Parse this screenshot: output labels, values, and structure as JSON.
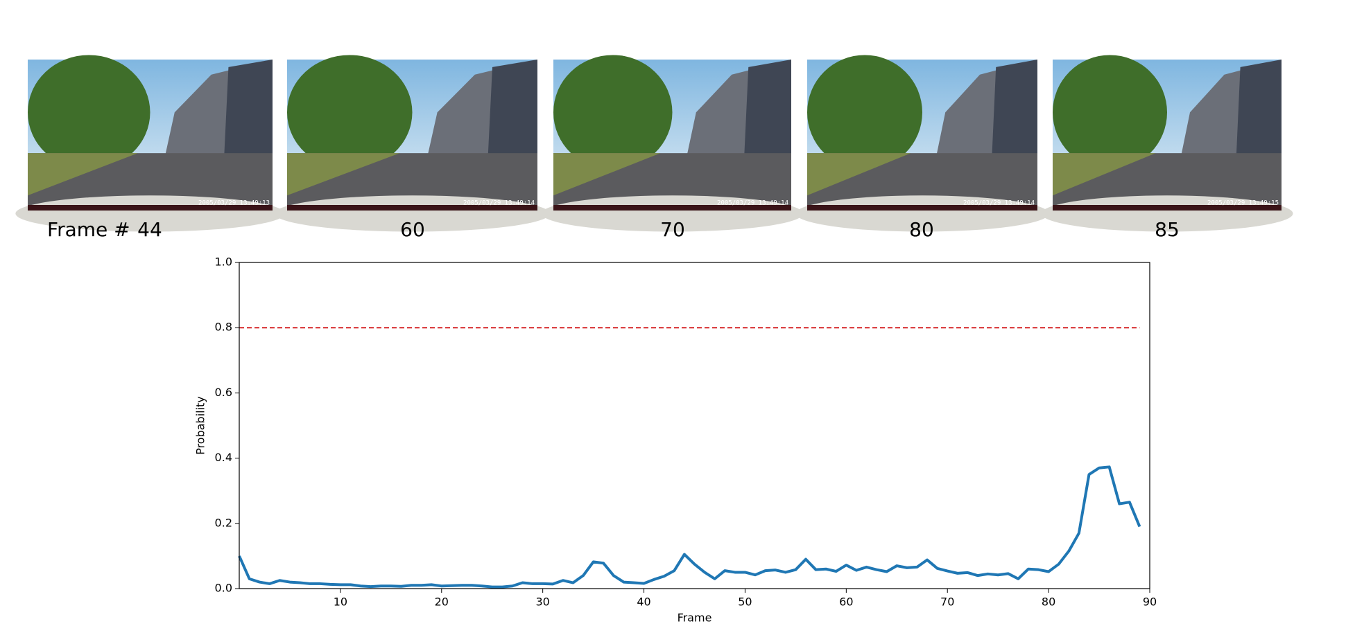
{
  "frames": {
    "prefix": "Frame #",
    "items": [
      {
        "label": "44",
        "timestamp": "2005/03/29 13:49:13"
      },
      {
        "label": "60",
        "timestamp": "2005/03/29 13:49:14"
      },
      {
        "label": "70",
        "timestamp": "2005/03/29 13:49:14"
      },
      {
        "label": "80",
        "timestamp": "2005/03/29 13:49:14"
      },
      {
        "label": "85",
        "timestamp": "2005/03/29 13:49:15"
      }
    ]
  },
  "chart_data": {
    "type": "line",
    "x_label": "Frame",
    "y_label": "Probability",
    "x": [
      0,
      1,
      2,
      3,
      4,
      5,
      6,
      7,
      8,
      9,
      10,
      11,
      12,
      13,
      14,
      15,
      16,
      17,
      18,
      19,
      20,
      21,
      22,
      23,
      24,
      25,
      26,
      27,
      28,
      29,
      30,
      31,
      32,
      33,
      34,
      35,
      36,
      37,
      38,
      39,
      40,
      41,
      42,
      43,
      44,
      45,
      46,
      47,
      48,
      49,
      50,
      51,
      52,
      53,
      54,
      55,
      56,
      57,
      58,
      59,
      60,
      61,
      62,
      63,
      64,
      65,
      66,
      67,
      68,
      69,
      70,
      71,
      72,
      73,
      74,
      75,
      76,
      77,
      78,
      79,
      80,
      81,
      82,
      83,
      84,
      85,
      86,
      87,
      88,
      89
    ],
    "series": [
      {
        "color": "#1f77b4",
        "values": [
          0.1,
          0.03,
          0.02,
          0.015,
          0.025,
          0.02,
          0.018,
          0.015,
          0.015,
          0.013,
          0.012,
          0.012,
          0.008,
          0.006,
          0.008,
          0.008,
          0.007,
          0.01,
          0.01,
          0.012,
          0.008,
          0.009,
          0.01,
          0.01,
          0.008,
          0.005,
          0.005,
          0.008,
          0.018,
          0.015,
          0.015,
          0.014,
          0.025,
          0.018,
          0.04,
          0.082,
          0.078,
          0.04,
          0.02,
          0.018,
          0.016,
          0.028,
          0.038,
          0.055,
          0.105,
          0.075,
          0.05,
          0.03,
          0.055,
          0.05,
          0.05,
          0.042,
          0.055,
          0.057,
          0.05,
          0.058,
          0.09,
          0.058,
          0.06,
          0.053,
          0.072,
          0.056,
          0.066,
          0.058,
          0.052,
          0.07,
          0.064,
          0.066,
          0.088,
          0.062,
          0.054,
          0.047,
          0.049,
          0.04,
          0.045,
          0.042,
          0.046,
          0.03,
          0.06,
          0.058,
          0.052,
          0.075,
          0.115,
          0.17,
          0.35,
          0.37,
          0.373,
          0.26,
          0.265,
          0.19
        ]
      }
    ],
    "threshold": {
      "value": 0.8,
      "color": "#d62728"
    },
    "xlim": [
      0,
      90
    ],
    "xticks": [
      10,
      20,
      30,
      40,
      50,
      60,
      70,
      80,
      90
    ],
    "ylim": [
      0,
      1
    ],
    "yticks": [
      {
        "value": 0,
        "label": "0.0"
      },
      0.2,
      0.4,
      0.6,
      0.8,
      {
        "value": 1,
        "label": "1.0"
      }
    ]
  }
}
